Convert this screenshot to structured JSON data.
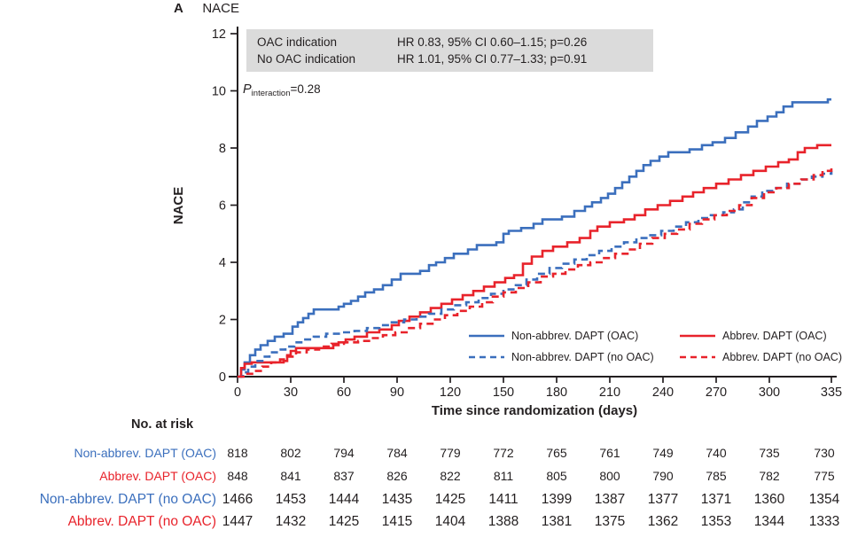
{
  "panel": {
    "letter": "A",
    "title": "NACE"
  },
  "colors": {
    "blue": "#3B6FBD",
    "red": "#E8232B",
    "box_bg": "#DBDBDB",
    "text": "#231F20"
  },
  "info_box": {
    "rows": [
      {
        "label": "OAC indication",
        "value": "HR 0.83, 95% CI 0.60–1.15; p=0.26"
      },
      {
        "label": "No OAC indication",
        "value": "HR 1.01, 95% CI 0.77–1.33; p=0.91"
      }
    ]
  },
  "p_interaction": {
    "symbol": "P",
    "subscript": "interaction",
    "value": "=0.28"
  },
  "chart_data": {
    "type": "line",
    "subtype": "step-after",
    "title": "NACE",
    "xlabel": "Time since randomization (days)",
    "ylabel": "NACE",
    "xlim": [
      0,
      335
    ],
    "ylim": [
      0,
      12
    ],
    "x_ticks": [
      0,
      30,
      60,
      90,
      120,
      150,
      180,
      210,
      240,
      270,
      300,
      335
    ],
    "y_ticks": [
      0,
      2,
      4,
      6,
      8,
      10,
      12
    ],
    "grid": false,
    "legend_position": "inside bottom-right",
    "series": [
      {
        "name": "Non-abbrev. DAPT (OAC)",
        "color": "blue",
        "style": "solid",
        "points": [
          [
            0,
            0
          ],
          [
            2,
            0.25
          ],
          [
            4,
            0.5
          ],
          [
            7,
            0.75
          ],
          [
            10,
            0.95
          ],
          [
            13,
            1.1
          ],
          [
            17,
            1.25
          ],
          [
            21,
            1.4
          ],
          [
            26,
            1.5
          ],
          [
            31,
            1.75
          ],
          [
            34,
            1.9
          ],
          [
            37,
            2.05
          ],
          [
            40,
            2.2
          ],
          [
            43,
            2.35
          ],
          [
            57,
            2.45
          ],
          [
            60,
            2.55
          ],
          [
            64,
            2.65
          ],
          [
            68,
            2.8
          ],
          [
            72,
            2.95
          ],
          [
            77,
            3.05
          ],
          [
            82,
            3.2
          ],
          [
            87,
            3.4
          ],
          [
            92,
            3.6
          ],
          [
            103,
            3.7
          ],
          [
            108,
            3.9
          ],
          [
            112,
            4.0
          ],
          [
            117,
            4.15
          ],
          [
            122,
            4.3
          ],
          [
            130,
            4.45
          ],
          [
            135,
            4.6
          ],
          [
            146,
            4.7
          ],
          [
            150,
            5.0
          ],
          [
            153,
            5.1
          ],
          [
            160,
            5.2
          ],
          [
            167,
            5.35
          ],
          [
            172,
            5.5
          ],
          [
            183,
            5.6
          ],
          [
            190,
            5.8
          ],
          [
            196,
            5.95
          ],
          [
            200,
            6.1
          ],
          [
            205,
            6.25
          ],
          [
            209,
            6.4
          ],
          [
            213,
            6.6
          ],
          [
            217,
            6.8
          ],
          [
            221,
            7.0
          ],
          [
            225,
            7.2
          ],
          [
            229,
            7.4
          ],
          [
            233,
            7.55
          ],
          [
            238,
            7.7
          ],
          [
            243,
            7.85
          ],
          [
            255,
            7.95
          ],
          [
            262,
            8.1
          ],
          [
            268,
            8.2
          ],
          [
            275,
            8.35
          ],
          [
            281,
            8.55
          ],
          [
            288,
            8.75
          ],
          [
            293,
            8.95
          ],
          [
            299,
            9.1
          ],
          [
            304,
            9.25
          ],
          [
            308,
            9.45
          ],
          [
            313,
            9.6
          ],
          [
            331,
            9.6
          ],
          [
            333,
            9.7
          ],
          [
            335,
            9.7
          ]
        ]
      },
      {
        "name": "Abbrev. DAPT (OAC)",
        "color": "red",
        "style": "solid",
        "points": [
          [
            0,
            0
          ],
          [
            2,
            0.3
          ],
          [
            4,
            0.45
          ],
          [
            8,
            0.5
          ],
          [
            26,
            0.55
          ],
          [
            28,
            0.75
          ],
          [
            30,
            0.9
          ],
          [
            33,
            1.0
          ],
          [
            54,
            1.1
          ],
          [
            57,
            1.2
          ],
          [
            61,
            1.3
          ],
          [
            66,
            1.4
          ],
          [
            73,
            1.55
          ],
          [
            80,
            1.65
          ],
          [
            87,
            1.8
          ],
          [
            91,
            1.95
          ],
          [
            97,
            2.1
          ],
          [
            103,
            2.25
          ],
          [
            109,
            2.4
          ],
          [
            115,
            2.55
          ],
          [
            121,
            2.7
          ],
          [
            127,
            2.85
          ],
          [
            133,
            3.0
          ],
          [
            139,
            3.15
          ],
          [
            145,
            3.3
          ],
          [
            151,
            3.45
          ],
          [
            156,
            3.55
          ],
          [
            161,
            3.95
          ],
          [
            166,
            4.2
          ],
          [
            172,
            4.4
          ],
          [
            178,
            4.55
          ],
          [
            186,
            4.7
          ],
          [
            193,
            4.85
          ],
          [
            199,
            5.1
          ],
          [
            203,
            5.25
          ],
          [
            210,
            5.4
          ],
          [
            218,
            5.5
          ],
          [
            224,
            5.65
          ],
          [
            230,
            5.85
          ],
          [
            237,
            6.0
          ],
          [
            244,
            6.15
          ],
          [
            251,
            6.3
          ],
          [
            257,
            6.45
          ],
          [
            263,
            6.6
          ],
          [
            270,
            6.75
          ],
          [
            277,
            6.9
          ],
          [
            284,
            7.05
          ],
          [
            291,
            7.2
          ],
          [
            298,
            7.35
          ],
          [
            305,
            7.5
          ],
          [
            311,
            7.6
          ],
          [
            316,
            7.85
          ],
          [
            320,
            8.0
          ],
          [
            327,
            8.1
          ],
          [
            335,
            8.1
          ]
        ]
      },
      {
        "name": "Non-abbrev. DAPT (no OAC)",
        "color": "blue",
        "style": "dashed",
        "points": [
          [
            0,
            0
          ],
          [
            3,
            0.15
          ],
          [
            6,
            0.35
          ],
          [
            10,
            0.55
          ],
          [
            14,
            0.7
          ],
          [
            18,
            0.85
          ],
          [
            23,
            0.95
          ],
          [
            27,
            1.05
          ],
          [
            32,
            1.2
          ],
          [
            37,
            1.3
          ],
          [
            43,
            1.4
          ],
          [
            50,
            1.5
          ],
          [
            58,
            1.55
          ],
          [
            66,
            1.6
          ],
          [
            73,
            1.7
          ],
          [
            80,
            1.8
          ],
          [
            87,
            1.9
          ],
          [
            94,
            2.0
          ],
          [
            101,
            2.1
          ],
          [
            108,
            2.2
          ],
          [
            115,
            2.35
          ],
          [
            122,
            2.5
          ],
          [
            129,
            2.6
          ],
          [
            136,
            2.75
          ],
          [
            143,
            2.9
          ],
          [
            150,
            3.05
          ],
          [
            157,
            3.2
          ],
          [
            163,
            3.4
          ],
          [
            169,
            3.6
          ],
          [
            176,
            3.8
          ],
          [
            183,
            3.95
          ],
          [
            190,
            4.1
          ],
          [
            197,
            4.25
          ],
          [
            204,
            4.4
          ],
          [
            211,
            4.55
          ],
          [
            218,
            4.7
          ],
          [
            225,
            4.85
          ],
          [
            232,
            4.95
          ],
          [
            239,
            5.1
          ],
          [
            246,
            5.25
          ],
          [
            253,
            5.4
          ],
          [
            260,
            5.55
          ],
          [
            267,
            5.65
          ],
          [
            274,
            5.75
          ],
          [
            280,
            5.85
          ],
          [
            285,
            6.1
          ],
          [
            290,
            6.3
          ],
          [
            296,
            6.5
          ],
          [
            303,
            6.6
          ],
          [
            310,
            6.75
          ],
          [
            317,
            6.9
          ],
          [
            324,
            7.0
          ],
          [
            330,
            7.1
          ],
          [
            335,
            7.2
          ]
        ]
      },
      {
        "name": "Abbrev. DAPT (no OAC)",
        "color": "red",
        "style": "dashed",
        "points": [
          [
            0,
            0
          ],
          [
            4,
            0.1
          ],
          [
            9,
            0.2
          ],
          [
            14,
            0.35
          ],
          [
            19,
            0.5
          ],
          [
            24,
            0.6
          ],
          [
            28,
            0.7
          ],
          [
            33,
            0.85
          ],
          [
            39,
            0.95
          ],
          [
            46,
            1.05
          ],
          [
            53,
            1.15
          ],
          [
            60,
            1.2
          ],
          [
            68,
            1.25
          ],
          [
            75,
            1.35
          ],
          [
            82,
            1.45
          ],
          [
            89,
            1.55
          ],
          [
            96,
            1.7
          ],
          [
            103,
            1.85
          ],
          [
            110,
            2.0
          ],
          [
            117,
            2.15
          ],
          [
            124,
            2.3
          ],
          [
            131,
            2.45
          ],
          [
            138,
            2.6
          ],
          [
            144,
            2.8
          ],
          [
            150,
            2.95
          ],
          [
            157,
            3.1
          ],
          [
            164,
            3.3
          ],
          [
            171,
            3.5
          ],
          [
            178,
            3.6
          ],
          [
            185,
            3.75
          ],
          [
            192,
            3.9
          ],
          [
            199,
            4.0
          ],
          [
            206,
            4.15
          ],
          [
            213,
            4.3
          ],
          [
            220,
            4.45
          ],
          [
            227,
            4.65
          ],
          [
            234,
            4.85
          ],
          [
            241,
            5.0
          ],
          [
            248,
            5.15
          ],
          [
            255,
            5.35
          ],
          [
            262,
            5.5
          ],
          [
            269,
            5.65
          ],
          [
            276,
            5.8
          ],
          [
            283,
            6.0
          ],
          [
            290,
            6.25
          ],
          [
            297,
            6.45
          ],
          [
            304,
            6.6
          ],
          [
            311,
            6.75
          ],
          [
            318,
            6.9
          ],
          [
            325,
            7.05
          ],
          [
            330,
            7.2
          ],
          [
            335,
            7.3
          ]
        ]
      }
    ]
  },
  "legend": {
    "items": [
      {
        "label": "Non-abbrev. DAPT (OAC)",
        "color": "blue",
        "style": "solid"
      },
      {
        "label": "Non-abbrev. DAPT (no OAC)",
        "color": "blue",
        "style": "dashed"
      },
      {
        "label": "Abbrev. DAPT (OAC)",
        "color": "red",
        "style": "solid"
      },
      {
        "label": "Abbrev. DAPT (no OAC)",
        "color": "red",
        "style": "dashed"
      }
    ]
  },
  "risk_table": {
    "header": "No. at risk",
    "rows": [
      {
        "label": "Non-abbrev. DAPT (OAC)",
        "color": "blue",
        "size": "sm",
        "values": [
          818,
          802,
          794,
          784,
          779,
          772,
          765,
          761,
          749,
          740,
          735,
          730
        ]
      },
      {
        "label": "Abbrev. DAPT (OAC)",
        "color": "red",
        "size": "sm",
        "values": [
          848,
          841,
          837,
          826,
          822,
          811,
          805,
          800,
          790,
          785,
          782,
          775
        ]
      },
      {
        "label": "Non-abbrev. DAPT (no OAC)",
        "color": "blue",
        "size": "lg",
        "values": [
          1466,
          1453,
          1444,
          1435,
          1425,
          1411,
          1399,
          1387,
          1377,
          1371,
          1360,
          1354
        ]
      },
      {
        "label": "Abbrev. DAPT (no OAC)",
        "color": "red",
        "size": "lg",
        "values": [
          1447,
          1432,
          1425,
          1415,
          1404,
          1388,
          1381,
          1375,
          1362,
          1353,
          1344,
          1333
        ]
      }
    ]
  }
}
